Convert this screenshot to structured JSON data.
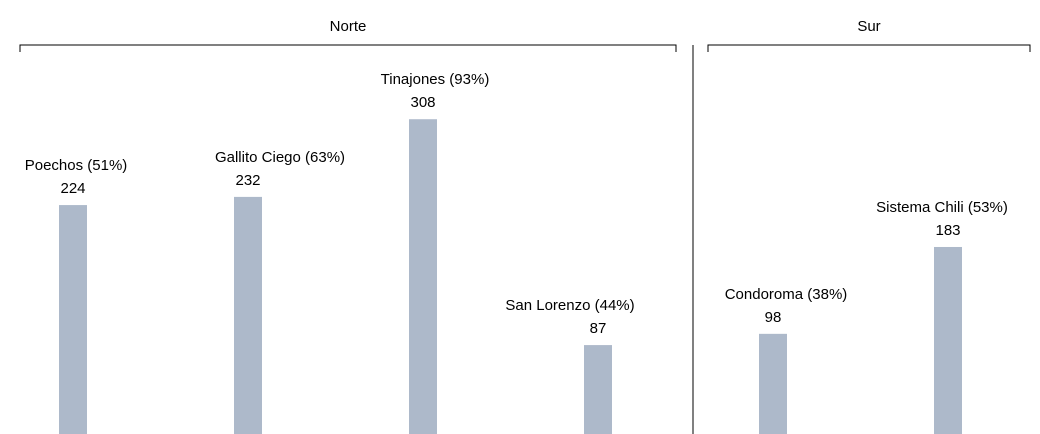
{
  "chart_data": {
    "type": "bar",
    "color": "#adb9ca",
    "groups": [
      {
        "label": "Norte",
        "categories": [
          "Poechos (51%)",
          "Gallito Ciego (63%)",
          "Tinajones (93%)",
          "San Lorenzo (44%)"
        ],
        "values": [
          224,
          232,
          308,
          87
        ]
      },
      {
        "label": "Sur",
        "categories": [
          "Condoroma (38%)",
          "Sistema Chili (53%)"
        ],
        "values": [
          98,
          183
        ]
      }
    ]
  }
}
